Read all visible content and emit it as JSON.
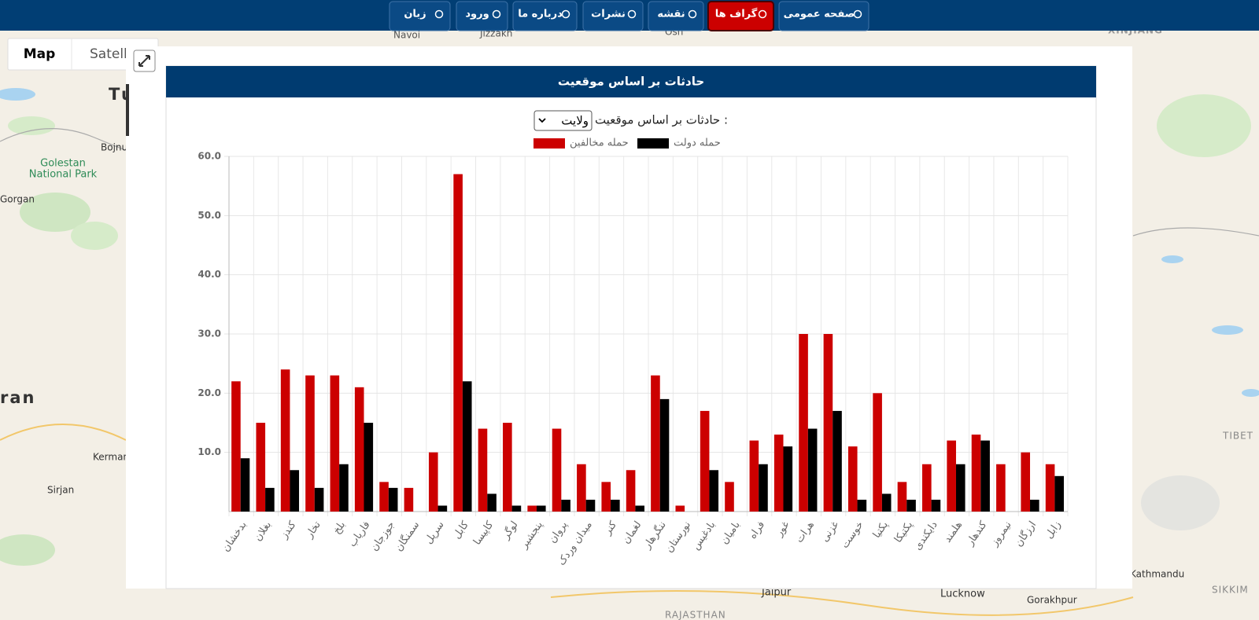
{
  "nav": {
    "items": [
      "زبان",
      "ورود",
      "درباره ما",
      "نشرات",
      "نقشه",
      "گراف ها",
      "صفحه عمومی"
    ],
    "active": 5
  },
  "map": {
    "controls": [
      "Map",
      "Satell"
    ],
    "labels": [
      "Navoi",
      "Jizzakh",
      "Osh",
      "XINJIANG",
      "Turk",
      "Bojnurd",
      "Golestan",
      "National Park",
      "Gorgan",
      "ran",
      "Kerman",
      "Sirjan",
      "Jaipur",
      "Lucknow",
      "Gorakhpur",
      "RAJASTHAN",
      "Kathmandu",
      "TIBET",
      "SIKKIM"
    ]
  },
  "card": {
    "title": "حادثات بر اساس موقعیت",
    "filter_label": "حادثات بر اساس موقعیت :",
    "filter_value": "ولایت"
  },
  "chart_data": {
    "type": "bar",
    "categories": [
      "بدخشان",
      "بغلان",
      "کندز",
      "تخار",
      "بلخ",
      "فاریاب",
      "جوزجان",
      "سمنگان",
      "سرپل",
      "کابل",
      "کاپیسا",
      "لوگر",
      "پنجشیر",
      "پروان",
      "میدان وردک",
      "کنر",
      "لغمان",
      "ننگرهار",
      "نورستان",
      "بادغیس",
      "بامیان",
      "فراه",
      "غور",
      "هرات",
      "غزنی",
      "خوست",
      "پکتیا",
      "پکتیکا",
      "دایکندی",
      "هلمند",
      "کندهار",
      "نیمروز",
      "ارزگان",
      "زابل"
    ],
    "series": [
      {
        "name": "حمله مخالفین",
        "color": "#cc0000",
        "values": [
          22,
          15,
          24,
          23,
          23,
          21,
          5,
          4,
          10,
          57,
          14,
          15,
          1,
          14,
          8,
          5,
          7,
          23,
          1,
          17,
          5,
          12,
          13,
          30,
          30,
          11,
          20,
          5,
          8,
          12,
          13,
          8,
          10,
          8
        ]
      },
      {
        "name": "حمله دولت",
        "color": "#000000",
        "values": [
          9,
          4,
          7,
          4,
          8,
          15,
          4,
          0,
          1,
          22,
          3,
          1,
          1,
          2,
          2,
          2,
          1,
          19,
          0,
          7,
          0,
          8,
          11,
          14,
          17,
          2,
          3,
          2,
          2,
          8,
          12,
          0,
          2,
          6
        ]
      }
    ],
    "ylim": [
      0,
      60
    ],
    "yticks": [
      {
        "value": 10,
        "label": "10.0"
      },
      {
        "value": 20,
        "label": "20.0"
      },
      {
        "value": 30,
        "label": "30.0"
      },
      {
        "value": 40,
        "label": "40.0"
      },
      {
        "value": 50,
        "label": "50.0"
      },
      {
        "value": 60,
        "label": "60.0"
      }
    ],
    "grid": true
  }
}
